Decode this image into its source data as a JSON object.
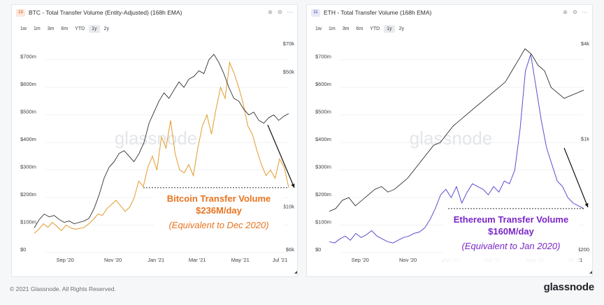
{
  "footer": {
    "copyright": "© 2021 Glassnode. All Rights Reserved.",
    "logo": "glassnode"
  },
  "chart_data": [
    {
      "type": "line",
      "badge": "13",
      "title": "BTC - Total Transfer Volume (Entity-Adjusted) (168h EMA)",
      "tabs": [
        "1w",
        "1m",
        "3m",
        "6m",
        "YTD",
        "1y",
        "2y"
      ],
      "active_tab": "1y",
      "watermark": "glassnode",
      "left_axis": {
        "ticks": [
          "$0",
          "$100m",
          "$200m",
          "$300m",
          "$400m",
          "$500m",
          "$600m",
          "$700m"
        ],
        "values": [
          0,
          100,
          200,
          300,
          400,
          500,
          600,
          700
        ],
        "range": [
          0,
          760
        ]
      },
      "right_axis": {
        "ticks": [
          "$6k",
          "$10k",
          "$50k",
          "$70k"
        ],
        "values": [
          6000,
          10000,
          50000,
          70000
        ]
      },
      "x_ticks": [
        "Sep '20",
        "Nov '20",
        "Jan '21",
        "Mar '21",
        "May '21",
        "Jul '21"
      ],
      "x_tick_pos": [
        0.154,
        0.335,
        0.498,
        0.654,
        0.817,
        0.967
      ],
      "series": [
        {
          "name": "Transfer Volume",
          "color": "#e39b2b",
          "axis": "left",
          "values": [
            70,
            85,
            105,
            92,
            110,
            95,
            80,
            100,
            90,
            85,
            88,
            92,
            105,
            120,
            140,
            135,
            160,
            175,
            190,
            170,
            150,
            165,
            200,
            260,
            240,
            310,
            350,
            300,
            420,
            380,
            480,
            360,
            300,
            290,
            320,
            280,
            380,
            460,
            500,
            430,
            520,
            600,
            560,
            690,
            650,
            600,
            540,
            460,
            430,
            370,
            320,
            280,
            300,
            270,
            340,
            310,
            236
          ]
        },
        {
          "name": "Price",
          "color": "#1a1a1a",
          "axis": "right",
          "values": [
            90,
            120,
            140,
            130,
            135,
            120,
            110,
            115,
            105,
            110,
            115,
            125,
            160,
            210,
            270,
            310,
            330,
            360,
            370,
            350,
            330,
            360,
            400,
            470,
            510,
            550,
            580,
            560,
            590,
            620,
            600,
            630,
            640,
            660,
            650,
            700,
            720,
            690,
            650,
            600,
            560,
            550,
            520,
            500,
            510,
            480,
            470,
            490,
            500,
            480,
            495,
            505
          ]
        }
      ],
      "reference_level": 236,
      "annotation": {
        "title": "Bitcoin Transfer Volume",
        "value": "$236M/day",
        "note": "(Equivalent to Dec 2020)",
        "color": "#e8741f"
      }
    },
    {
      "type": "line",
      "badge": "11",
      "title": "ETH - Total Transfer Volume (168h EMA)",
      "tabs": [
        "1w",
        "1m",
        "3m",
        "6m",
        "YTD",
        "1y",
        "2y"
      ],
      "active_tab": "1y",
      "watermark": "glassnode",
      "left_axis": {
        "ticks": [
          "$0",
          "$100m",
          "$200m",
          "$300m",
          "$400m",
          "$500m",
          "$600m",
          "$700m"
        ],
        "values": [
          0,
          100,
          200,
          300,
          400,
          500,
          600,
          700
        ],
        "range": [
          0,
          760
        ]
      },
      "right_axis": {
        "ticks": [
          "$200",
          "$1k",
          "$4k"
        ],
        "values": [
          200,
          1000,
          4000
        ]
      },
      "x_ticks": [
        "Sep '20",
        "Nov '20",
        "Jan '21",
        "Mar '21",
        "May '21",
        "Jul '21"
      ],
      "x_tick_pos": [
        0.154,
        0.335,
        0.498,
        0.654,
        0.817,
        0.967
      ],
      "series": [
        {
          "name": "Transfer Volume",
          "color": "#5a4fcf",
          "axis": "left",
          "values": [
            40,
            35,
            50,
            60,
            45,
            70,
            55,
            65,
            80,
            60,
            50,
            40,
            35,
            45,
            55,
            60,
            70,
            75,
            90,
            120,
            160,
            210,
            230,
            200,
            240,
            180,
            220,
            250,
            240,
            230,
            210,
            240,
            220,
            260,
            250,
            300,
            450,
            660,
            720,
            600,
            480,
            380,
            320,
            260,
            240,
            200,
            180,
            170,
            160
          ]
        },
        {
          "name": "Price",
          "color": "#1a1a1a",
          "axis": "right",
          "values": [
            150,
            160,
            190,
            200,
            170,
            190,
            210,
            230,
            240,
            220,
            230,
            250,
            270,
            300,
            330,
            360,
            390,
            400,
            430,
            460,
            480,
            500,
            520,
            540,
            560,
            580,
            600,
            620,
            660,
            700,
            740,
            720,
            680,
            660,
            600,
            580,
            560,
            570,
            580,
            590
          ]
        }
      ],
      "reference_level": 160,
      "annotation": {
        "title": "Ethereum Transfer Volume",
        "value": "$160M/day",
        "note": "(Equivalent to Jan 2020)",
        "color": "#7a27c8"
      }
    }
  ]
}
